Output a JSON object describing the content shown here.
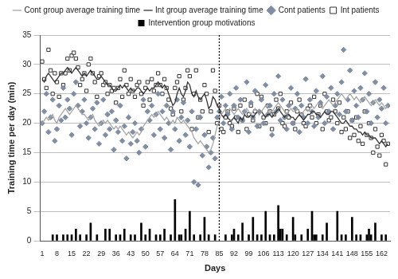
{
  "chart_data": {
    "type": "combo",
    "x_label": "Days",
    "y_label": "Training time per day (min)",
    "legend": "top",
    "grid": true,
    "xlim": [
      0,
      166
    ],
    "xticks": [
      1,
      8,
      15,
      22,
      29,
      36,
      43,
      50,
      57,
      64,
      71,
      78,
      85,
      92,
      99,
      106,
      113,
      120,
      127,
      134,
      141,
      148,
      155,
      162
    ],
    "ylim": [
      0,
      35
    ],
    "yticks": [
      0,
      5,
      10,
      15,
      20,
      25,
      30,
      35
    ],
    "reference_lines": [
      {
        "x": 85,
        "line_style": "dotted",
        "color": "#000000"
      }
    ],
    "x": [
      1,
      2,
      3,
      4,
      5,
      6,
      7,
      8,
      9,
      10,
      11,
      12,
      13,
      14,
      15,
      16,
      17,
      18,
      19,
      20,
      21,
      22,
      23,
      24,
      25,
      26,
      27,
      28,
      29,
      30,
      31,
      32,
      33,
      34,
      35,
      36,
      37,
      38,
      39,
      40,
      41,
      42,
      43,
      44,
      45,
      46,
      47,
      48,
      49,
      50,
      51,
      52,
      53,
      54,
      55,
      56,
      57,
      58,
      59,
      60,
      61,
      62,
      63,
      64,
      65,
      66,
      67,
      68,
      69,
      70,
      71,
      72,
      73,
      74,
      75,
      76,
      77,
      78,
      79,
      80,
      81,
      82,
      83,
      84,
      85,
      86,
      87,
      88,
      89,
      90,
      91,
      92,
      93,
      94,
      95,
      96,
      97,
      98,
      99,
      100,
      101,
      102,
      103,
      104,
      105,
      106,
      107,
      108,
      109,
      110,
      111,
      112,
      113,
      114,
      115,
      116,
      117,
      118,
      119,
      120,
      121,
      122,
      123,
      124,
      125,
      126,
      127,
      128,
      129,
      130,
      131,
      132,
      133,
      134,
      135,
      136,
      137,
      138,
      139,
      140,
      141,
      142,
      143,
      144,
      145,
      146,
      147,
      148,
      149,
      150,
      151,
      152,
      153,
      154,
      155,
      156,
      157,
      158,
      159,
      160,
      161,
      162,
      163,
      164,
      165
    ],
    "series": [
      {
        "name": "Intervention group motivations",
        "type": "bar",
        "color": "#000000",
        "values": [
          null,
          null,
          null,
          null,
          null,
          1,
          null,
          1,
          null,
          null,
          1,
          null,
          1,
          null,
          1,
          null,
          2,
          null,
          1,
          null,
          null,
          1,
          null,
          3,
          null,
          null,
          1,
          null,
          null,
          null,
          2,
          null,
          2,
          null,
          null,
          1,
          null,
          1,
          null,
          2,
          null,
          null,
          1,
          null,
          1,
          null,
          null,
          3,
          null,
          1,
          null,
          2,
          null,
          null,
          1,
          null,
          1,
          null,
          2,
          null,
          null,
          1,
          null,
          7,
          null,
          1,
          1,
          null,
          2,
          null,
          5,
          null,
          1,
          null,
          null,
          1,
          null,
          4,
          null,
          1,
          null,
          null,
          1,
          null,
          null,
          null,
          null,
          1,
          null,
          null,
          1,
          2,
          null,
          1,
          null,
          3,
          null,
          null,
          1,
          null,
          4,
          null,
          1,
          null,
          1,
          null,
          5,
          null,
          1,
          null,
          1,
          null,
          6,
          2,
          2,
          null,
          1,
          null,
          null,
          4,
          1,
          null,
          null,
          1,
          null,
          null,
          2,
          null,
          5,
          1,
          1,
          null,
          null,
          1,
          null,
          3,
          null,
          null,
          null,
          null,
          5,
          null,
          1,
          null,
          1,
          null,
          null,
          4,
          null,
          1,
          null,
          1,
          null,
          null,
          1,
          2,
          1,
          null,
          3,
          null,
          null,
          1,
          null,
          1,
          null
        ]
      },
      {
        "name": "Cont patients",
        "type": "scatter",
        "marker": "diamond",
        "color": "#7f8ea3",
        "values": [
          20,
          22,
          25,
          18.5,
          21,
          24,
          17,
          19,
          23,
          20.5,
          26,
          21,
          24,
          22.5,
          18,
          25,
          27,
          23,
          19.5,
          22,
          24,
          20,
          17.5,
          21,
          22.5,
          19,
          23.5,
          16.5,
          20,
          24,
          18,
          21.5,
          19,
          22,
          15.5,
          20.5,
          18.5,
          23,
          17,
          19.5,
          14,
          21,
          16.5,
          18.5,
          20,
          17,
          15,
          19,
          24,
          16,
          22,
          20.5,
          23,
          18,
          21.5,
          25,
          19,
          22,
          17.5,
          23,
          20,
          15.5,
          22,
          19,
          24,
          17,
          21,
          23.5,
          18,
          20.5,
          16,
          22,
          10,
          19,
          9.5,
          21,
          14.5,
          18,
          16,
          12.5,
          15,
          17.5,
          14,
          21,
          22,
          24.5,
          20,
          23,
          21.5,
          25,
          19,
          23,
          26,
          21,
          24,
          20.5,
          22,
          27,
          18.5,
          23.5,
          21,
          25.5,
          19.5,
          22,
          24,
          20,
          26.5,
          21.5,
          23,
          18,
          25,
          22,
          28,
          20.5,
          24,
          21,
          19,
          23,
          26,
          20,
          22.5,
          25,
          18.5,
          23,
          21,
          27.5,
          20,
          24,
          22,
          19.5,
          25.5,
          21,
          23.5,
          28,
          20,
          24.5,
          22,
          26,
          19,
          23,
          25,
          21.5,
          27,
          32.5,
          22,
          24,
          29,
          20.5,
          25.5,
          23,
          21,
          26,
          24,
          28.5,
          22,
          25,
          20,
          23.5,
          27,
          21,
          24,
          22.5,
          26,
          20,
          23
        ]
      },
      {
        "name": "Int patients",
        "type": "scatter",
        "marker": "square",
        "color": "#333333",
        "values": [
          30.5,
          27.5,
          26,
          32.5,
          29,
          25,
          28.5,
          27,
          24.5,
          28.5,
          26.5,
          28.5,
          31,
          29,
          31.5,
          32,
          31,
          29.5,
          26.5,
          27.5,
          28.5,
          25.5,
          30,
          31,
          28.5,
          27,
          24.5,
          28,
          28.5,
          26.5,
          27,
          25,
          26.5,
          25.5,
          26,
          23.5,
          26,
          27.5,
          24.5,
          29,
          26.5,
          25,
          27.5,
          25.5,
          24.5,
          26.5,
          27,
          25,
          23,
          26,
          27,
          24,
          27.5,
          25.5,
          26.5,
          28.5,
          26.5,
          25,
          27.5,
          26,
          24,
          22.5,
          21.5,
          26,
          27,
          28,
          22,
          24,
          26,
          29,
          28,
          19,
          25,
          29,
          21,
          24,
          22,
          26.5,
          25,
          18.5,
          22,
          29,
          25.5,
          20,
          23,
          19,
          18.5,
          21,
          22,
          20,
          19.5,
          22.5,
          21,
          18.5,
          23,
          20.5,
          24,
          19,
          21.5,
          23,
          20.5,
          22,
          25,
          19.5,
          24.5,
          21,
          20,
          23,
          22,
          19,
          21.5,
          24,
          22.5,
          25,
          20,
          19.5,
          22,
          21,
          23.5,
          20,
          19,
          22,
          24,
          21.5,
          20,
          19.5,
          22.5,
          23,
          21,
          24.5,
          20,
          21.5,
          23,
          19,
          25,
          22,
          20.5,
          21,
          24,
          22,
          20,
          23.5,
          18.5,
          21,
          19,
          22,
          17.5,
          20.5,
          18,
          21,
          17,
          19.5,
          16.5,
          22,
          18,
          20,
          17.5,
          15,
          19,
          16,
          14.5,
          18,
          17,
          13,
          16.5
        ]
      },
      {
        "name": "Cont group average training time",
        "type": "line",
        "line_style": "solid",
        "color": "#a6a6a6",
        "values": [
          20,
          20.5,
          21,
          20.5,
          21,
          21.5,
          20.5,
          20,
          21,
          21.5,
          22,
          22.5,
          22,
          21.5,
          22,
          22.5,
          23,
          22.5,
          22,
          21.5,
          21.5,
          21,
          20.5,
          21,
          21.5,
          20.5,
          20,
          19.5,
          20,
          20.5,
          20,
          20.5,
          20,
          19.5,
          19,
          19.5,
          19,
          19.5,
          19,
          18.5,
          18,
          18.5,
          18,
          17.5,
          18,
          18.5,
          18,
          18.5,
          19.5,
          20,
          20.5,
          21,
          21.5,
          21,
          21.5,
          22,
          21.5,
          21,
          20.5,
          21,
          20.5,
          20,
          20.5,
          20,
          21,
          20.5,
          20,
          20.5,
          20,
          19.5,
          19,
          18.5,
          17.5,
          17,
          16.5,
          17,
          16.5,
          16,
          15.5,
          15,
          15.5,
          16.5,
          18,
          19.5,
          20.5,
          21.5,
          22,
          22.5,
          22,
          22.5,
          22,
          21.5,
          22,
          22.5,
          22,
          21.5,
          22,
          22.5,
          22,
          21.5,
          22,
          22.5,
          22,
          21.5,
          22,
          22.5,
          23,
          22.5,
          22,
          22,
          22.5,
          23,
          23.5,
          23,
          22.5,
          22,
          21.5,
          22,
          22.5,
          22,
          22,
          22.5,
          22,
          21.5,
          22,
          22.5,
          22,
          22.5,
          23,
          22.5,
          23,
          23.5,
          23,
          22.5,
          23,
          23.5,
          24,
          23.5,
          23,
          23.5,
          24,
          24.5,
          25,
          24.5,
          24,
          24.5,
          25,
          24.5,
          24,
          24.5,
          24,
          23.5,
          24,
          24.5,
          24,
          23.5,
          23,
          23.5,
          24,
          23.5,
          23,
          23.5,
          23,
          22.5,
          23
        ]
      },
      {
        "name": "Int group average training time",
        "type": "line",
        "line_style": "solid",
        "color": "#333333",
        "values": [
          27.5,
          27,
          28,
          28.5,
          28,
          27.5,
          27,
          27.5,
          28,
          28.5,
          28.5,
          29,
          29.5,
          29,
          28.5,
          29,
          29.5,
          29,
          28.5,
          28,
          28.5,
          28,
          28.5,
          29,
          28.5,
          28,
          27.5,
          27.5,
          28,
          27.5,
          27,
          26.5,
          26.5,
          26,
          25.5,
          25.5,
          26,
          26.5,
          26,
          26.5,
          26,
          25.5,
          26,
          25.5,
          25.5,
          26,
          26,
          25.5,
          25,
          25.5,
          26,
          25.5,
          26,
          26,
          26.5,
          27,
          26.5,
          26,
          26.5,
          26,
          25,
          24,
          23,
          23.5,
          25,
          26,
          25,
          24.5,
          25.5,
          27,
          26.5,
          25,
          24.5,
          25.5,
          24.5,
          24,
          24.5,
          25,
          24,
          22.5,
          23,
          24.5,
          24,
          23,
          22.5,
          21.5,
          21,
          21.5,
          21,
          20.5,
          20.5,
          21,
          20.5,
          20,
          21,
          20.5,
          21.5,
          21,
          21,
          21.5,
          21,
          21.5,
          22,
          21.5,
          22,
          21.5,
          21,
          21.5,
          21.5,
          21,
          21.5,
          22,
          22.5,
          22,
          21.5,
          21,
          21.5,
          21.5,
          21,
          21,
          20.5,
          21,
          21.5,
          21,
          20.5,
          21,
          21.5,
          21.5,
          22,
          22,
          21.5,
          21.5,
          21,
          21.5,
          22,
          21.5,
          21.5,
          22,
          22,
          21.5,
          21,
          20.5,
          20,
          20,
          20.5,
          20,
          19.5,
          19.5,
          19,
          19,
          18.5,
          18.5,
          18,
          18.5,
          18,
          18,
          17.5,
          17.5,
          17.5,
          17,
          16.5,
          17,
          16.5,
          16,
          16.5
        ]
      }
    ]
  }
}
